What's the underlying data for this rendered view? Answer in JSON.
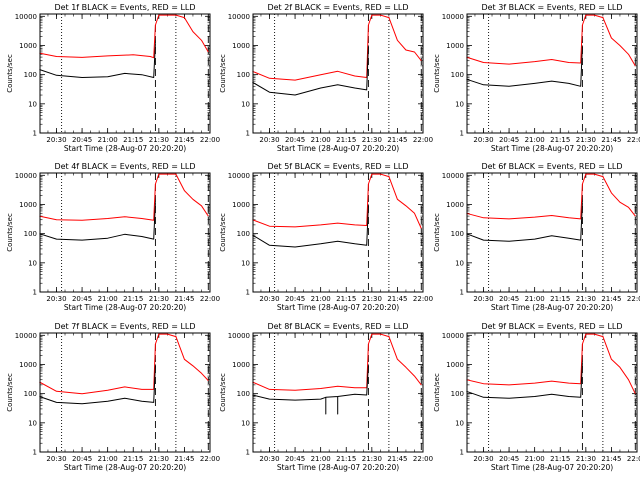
{
  "chart_data": [
    {
      "type": "line",
      "title": "Det 1f BLACK = Events, RED = LLD",
      "ylabel": "Counts/sec",
      "xlabel": "Start Time (28-Aug-07 20:20:20)",
      "x_ticks": [
        "20:30",
        "20:45",
        "21:00",
        "21:15",
        "21:30",
        "21:45",
        "22:00"
      ],
      "y_ticks": [
        "1",
        "10",
        "100",
        "1000",
        "10000"
      ],
      "y_scale": "log",
      "ylim": [
        1,
        12000
      ],
      "xlim": [
        "20:20:20",
        "22:00:00"
      ],
      "series": [
        {
          "color": "#ff0000",
          "x": [
            "20:20",
            "20:30",
            "20:45",
            "21:00",
            "21:15",
            "21:25",
            "21:27",
            "21:28",
            "21:30",
            "21:35",
            "21:40",
            "21:45",
            "21:50",
            "21:55",
            "21:59"
          ],
          "values": [
            550,
            420,
            390,
            440,
            480,
            420,
            380,
            5000,
            11000,
            11000,
            11000,
            9000,
            3000,
            1500,
            600
          ]
        },
        {
          "color": "#000000",
          "x": [
            "20:20",
            "20:30",
            "20:45",
            "21:00",
            "21:10",
            "21:20",
            "21:27",
            "21:28"
          ],
          "values": [
            150,
            95,
            80,
            85,
            110,
            100,
            80,
            1200
          ]
        }
      ],
      "vlines": [
        {
          "style": "dotted",
          "x": "20:33"
        },
        {
          "style": "dashed",
          "x": "21:28"
        },
        {
          "style": "dotted",
          "x": "21:40"
        },
        {
          "style": "dashed",
          "x": "21:59"
        }
      ]
    },
    {
      "type": "line",
      "title": "Det 2f BLACK = Events, RED = LLD",
      "ylabel": "Counts/sec",
      "xlabel": "Start Time (28-Aug-07 20:20:20)",
      "x_ticks": [
        "20:30",
        "20:45",
        "21:00",
        "21:15",
        "21:30",
        "21:45",
        "22:00"
      ],
      "y_ticks": [
        "1",
        "10",
        "100",
        "1000",
        "10000"
      ],
      "y_scale": "log",
      "ylim": [
        1,
        12000
      ],
      "xlim": [
        "20:20:20",
        "22:00:00"
      ],
      "series": [
        {
          "color": "#ff0000",
          "x": [
            "20:20",
            "20:30",
            "20:45",
            "21:00",
            "21:10",
            "21:20",
            "21:27",
            "21:28",
            "21:30",
            "21:35",
            "21:40",
            "21:45",
            "21:50",
            "21:55",
            "21:59"
          ],
          "values": [
            130,
            75,
            65,
            100,
            130,
            90,
            80,
            5000,
            11000,
            11000,
            9000,
            1500,
            700,
            600,
            300
          ]
        },
        {
          "color": "#000000",
          "x": [
            "20:20",
            "20:30",
            "20:45",
            "21:00",
            "21:10",
            "21:20",
            "21:27",
            "21:28"
          ],
          "values": [
            55,
            25,
            20,
            35,
            45,
            35,
            30,
            1000
          ]
        }
      ],
      "vlines": [
        {
          "style": "dotted",
          "x": "20:33"
        },
        {
          "style": "dashed",
          "x": "21:28"
        },
        {
          "style": "dotted",
          "x": "21:40"
        },
        {
          "style": "dashed",
          "x": "21:59"
        }
      ]
    },
    {
      "type": "line",
      "title": "Det 3f BLACK = Events, RED = LLD",
      "ylabel": "Counts/sec",
      "xlabel": "Start Time (28-Aug-07 20:20:20)",
      "x_ticks": [
        "20:30",
        "20:45",
        "21:00",
        "21:15",
        "21:30",
        "21:45",
        "22:00"
      ],
      "y_ticks": [
        "1",
        "10",
        "100",
        "1000",
        "10000"
      ],
      "y_scale": "log",
      "ylim": [
        1,
        12000
      ],
      "xlim": [
        "20:20:20",
        "22:00:00"
      ],
      "series": [
        {
          "color": "#ff0000",
          "x": [
            "20:20",
            "20:30",
            "20:45",
            "21:00",
            "21:10",
            "21:20",
            "21:27",
            "21:28",
            "21:30",
            "21:35",
            "21:40",
            "21:45",
            "21:50",
            "21:55",
            "21:59"
          ],
          "values": [
            400,
            260,
            230,
            280,
            330,
            260,
            250,
            5000,
            11000,
            11000,
            9000,
            1800,
            1000,
            500,
            200
          ]
        },
        {
          "color": "#000000",
          "x": [
            "20:20",
            "20:30",
            "20:45",
            "21:00",
            "21:10",
            "21:20",
            "21:27",
            "21:28"
          ],
          "values": [
            70,
            45,
            40,
            50,
            60,
            50,
            40,
            1000
          ]
        }
      ],
      "vlines": [
        {
          "style": "dotted",
          "x": "20:33"
        },
        {
          "style": "dashed",
          "x": "21:28"
        },
        {
          "style": "dotted",
          "x": "21:40"
        },
        {
          "style": "dashed",
          "x": "21:59"
        }
      ]
    },
    {
      "type": "line",
      "title": "Det 4f BLACK = Events, RED = LLD",
      "ylabel": "Counts/sec",
      "xlabel": "Start Time (28-Aug-07 20:20:20)",
      "x_ticks": [
        "20:30",
        "20:45",
        "21:00",
        "21:15",
        "21:30",
        "21:45",
        "22:00"
      ],
      "y_ticks": [
        "1",
        "10",
        "100",
        "1000",
        "10000"
      ],
      "y_scale": "log",
      "ylim": [
        1,
        12000
      ],
      "xlim": [
        "20:20:20",
        "22:00:00"
      ],
      "series": [
        {
          "color": "#ff0000",
          "x": [
            "20:20",
            "20:30",
            "20:45",
            "21:00",
            "21:10",
            "21:20",
            "21:27",
            "21:28",
            "21:30",
            "21:35",
            "21:40",
            "21:45",
            "21:50",
            "21:55",
            "21:59"
          ],
          "values": [
            400,
            300,
            290,
            330,
            380,
            330,
            290,
            5000,
            11000,
            11000,
            11000,
            3000,
            1500,
            900,
            400
          ]
        },
        {
          "color": "#000000",
          "x": [
            "20:20",
            "20:30",
            "20:45",
            "21:00",
            "21:10",
            "21:20",
            "21:27",
            "21:28"
          ],
          "values": [
            100,
            65,
            60,
            70,
            95,
            80,
            65,
            1200
          ]
        }
      ],
      "vlines": [
        {
          "style": "dotted",
          "x": "20:33"
        },
        {
          "style": "dashed",
          "x": "21:28"
        },
        {
          "style": "dotted",
          "x": "21:40"
        },
        {
          "style": "dashed",
          "x": "21:59"
        }
      ]
    },
    {
      "type": "line",
      "title": "Det 5f BLACK = Events, RED = LLD",
      "ylabel": "Counts/sec",
      "xlabel": "Start Time (28-Aug-07 20:20:20)",
      "x_ticks": [
        "20:30",
        "20:45",
        "21:00",
        "21:15",
        "21:30",
        "21:45",
        "22:00"
      ],
      "y_ticks": [
        "1",
        "10",
        "100",
        "1000",
        "10000"
      ],
      "y_scale": "log",
      "ylim": [
        1,
        12000
      ],
      "xlim": [
        "20:20:20",
        "22:00:00"
      ],
      "series": [
        {
          "color": "#ff0000",
          "x": [
            "20:20",
            "20:30",
            "20:45",
            "21:00",
            "21:10",
            "21:20",
            "21:27",
            "21:28",
            "21:30",
            "21:35",
            "21:40",
            "21:45",
            "21:50",
            "21:55",
            "21:59"
          ],
          "values": [
            300,
            180,
            170,
            200,
            230,
            200,
            190,
            5000,
            11000,
            11000,
            9000,
            1500,
            900,
            500,
            150
          ]
        },
        {
          "color": "#000000",
          "x": [
            "20:20",
            "20:30",
            "20:45",
            "21:00",
            "21:10",
            "21:20",
            "21:27",
            "21:28"
          ],
          "values": [
            90,
            40,
            35,
            45,
            55,
            45,
            40,
            1000
          ]
        }
      ],
      "vlines": [
        {
          "style": "dotted",
          "x": "20:33"
        },
        {
          "style": "dashed",
          "x": "21:28"
        },
        {
          "style": "dotted",
          "x": "21:40"
        },
        {
          "style": "dashed",
          "x": "21:59"
        }
      ]
    },
    {
      "type": "line",
      "title": "Det 6f BLACK = Events, RED = LLD",
      "ylabel": "Counts/sec",
      "xlabel": "Start Time (28-Aug-07 20:20:20)",
      "x_ticks": [
        "20:30",
        "20:45",
        "21:00",
        "21:15",
        "21:30",
        "21:45",
        "22:00"
      ],
      "y_ticks": [
        "1",
        "10",
        "100",
        "1000",
        "10000"
      ],
      "y_scale": "log",
      "ylim": [
        1,
        12000
      ],
      "xlim": [
        "20:20:20",
        "22:00:00"
      ],
      "series": [
        {
          "color": "#ff0000",
          "x": [
            "20:20",
            "20:30",
            "20:45",
            "21:00",
            "21:10",
            "21:20",
            "21:27",
            "21:28",
            "21:30",
            "21:35",
            "21:40",
            "21:45",
            "21:50",
            "21:55",
            "21:59"
          ],
          "values": [
            500,
            350,
            320,
            370,
            420,
            350,
            320,
            5000,
            11000,
            11000,
            9000,
            2500,
            1200,
            800,
            400
          ]
        },
        {
          "color": "#000000",
          "x": [
            "20:20",
            "20:30",
            "20:45",
            "21:00",
            "21:10",
            "21:20",
            "21:27",
            "21:28"
          ],
          "values": [
            100,
            60,
            55,
            65,
            85,
            70,
            60,
            1200
          ]
        }
      ],
      "vlines": [
        {
          "style": "dotted",
          "x": "20:33"
        },
        {
          "style": "dashed",
          "x": "21:28"
        },
        {
          "style": "dotted",
          "x": "21:40"
        },
        {
          "style": "dashed",
          "x": "21:59"
        }
      ]
    },
    {
      "type": "line",
      "title": "Det 7f BLACK = Events, RED = LLD",
      "ylabel": "Counts/sec",
      "xlabel": "Start Time (28-Aug-07 20:20:20)",
      "x_ticks": [
        "20:30",
        "20:45",
        "21:00",
        "21:15",
        "21:30",
        "21:45",
        "22:00"
      ],
      "y_ticks": [
        "1",
        "10",
        "100",
        "1000",
        "10000"
      ],
      "y_scale": "log",
      "ylim": [
        1,
        12000
      ],
      "xlim": [
        "20:20:20",
        "22:00:00"
      ],
      "series": [
        {
          "color": "#ff0000",
          "x": [
            "20:20",
            "20:30",
            "20:45",
            "21:00",
            "21:10",
            "21:20",
            "21:27",
            "21:28",
            "21:30",
            "21:35",
            "21:40",
            "21:45",
            "21:50",
            "21:55",
            "21:59"
          ],
          "values": [
            250,
            120,
            100,
            130,
            170,
            140,
            140,
            5000,
            11000,
            11000,
            9000,
            1500,
            900,
            500,
            280
          ]
        },
        {
          "color": "#000000",
          "x": [
            "20:20",
            "20:30",
            "20:45",
            "21:00",
            "21:10",
            "21:20",
            "21:27",
            "21:28"
          ],
          "values": [
            80,
            50,
            45,
            55,
            70,
            55,
            50,
            1000
          ]
        }
      ],
      "vlines": [
        {
          "style": "dotted",
          "x": "20:33"
        },
        {
          "style": "dashed",
          "x": "21:28"
        },
        {
          "style": "dotted",
          "x": "21:40"
        },
        {
          "style": "dashed",
          "x": "21:59"
        }
      ]
    },
    {
      "type": "line",
      "title": "Det 8f BLACK = Events, RED = LLD",
      "ylabel": "Counts/sec",
      "xlabel": "Start Time (28-Aug-07 20:20:20)",
      "x_ticks": [
        "20:30",
        "20:45",
        "21:00",
        "21:15",
        "21:30",
        "21:45",
        "22:00"
      ],
      "y_ticks": [
        "1",
        "10",
        "100",
        "1000",
        "10000"
      ],
      "y_scale": "log",
      "ylim": [
        1,
        12000
      ],
      "xlim": [
        "20:20:20",
        "22:00:00"
      ],
      "series": [
        {
          "color": "#ff0000",
          "x": [
            "20:20",
            "20:30",
            "20:45",
            "21:00",
            "21:10",
            "21:20",
            "21:27",
            "21:28",
            "21:30",
            "21:35",
            "21:40",
            "21:45",
            "21:50",
            "21:55",
            "21:59"
          ],
          "values": [
            250,
            140,
            130,
            150,
            180,
            160,
            160,
            5000,
            11000,
            11000,
            9000,
            1500,
            800,
            400,
            200
          ]
        },
        {
          "color": "#000000",
          "x": [
            "20:20",
            "20:30",
            "20:45",
            "21:00",
            "21:03",
            "21:03",
            "21:03",
            "21:10",
            "21:10",
            "21:10",
            "21:20",
            "21:27",
            "21:28"
          ],
          "values": [
            90,
            65,
            60,
            65,
            75,
            20,
            75,
            80,
            20,
            80,
            95,
            90,
            1000
          ]
        }
      ],
      "vlines": [
        {
          "style": "dotted",
          "x": "20:33"
        },
        {
          "style": "dashed",
          "x": "21:28"
        },
        {
          "style": "dotted",
          "x": "21:40"
        },
        {
          "style": "dashed",
          "x": "21:59"
        }
      ]
    },
    {
      "type": "line",
      "title": "Det 9f BLACK = Events, RED = LLD",
      "ylabel": "Counts/sec",
      "xlabel": "Start Time (28-Aug-07 20:20:20)",
      "x_ticks": [
        "20:30",
        "20:45",
        "21:00",
        "21:15",
        "21:30",
        "21:45",
        "22:00"
      ],
      "y_ticks": [
        "1",
        "10",
        "100",
        "1000",
        "10000"
      ],
      "y_scale": "log",
      "ylim": [
        1,
        12000
      ],
      "xlim": [
        "20:20:20",
        "22:00:00"
      ],
      "series": [
        {
          "color": "#ff0000",
          "x": [
            "20:20",
            "20:30",
            "20:45",
            "21:00",
            "21:10",
            "21:20",
            "21:27",
            "21:28",
            "21:30",
            "21:35",
            "21:40",
            "21:45",
            "21:50",
            "21:55",
            "21:59"
          ],
          "values": [
            300,
            220,
            200,
            230,
            270,
            230,
            220,
            5000,
            11000,
            11000,
            9000,
            1500,
            800,
            300,
            100
          ]
        },
        {
          "color": "#000000",
          "x": [
            "20:20",
            "20:30",
            "20:45",
            "21:00",
            "21:10",
            "21:20",
            "21:27",
            "21:28"
          ],
          "values": [
            120,
            75,
            70,
            80,
            95,
            80,
            75,
            1200
          ]
        }
      ],
      "vlines": [
        {
          "style": "dotted",
          "x": "20:33"
        },
        {
          "style": "dashed",
          "x": "21:28"
        },
        {
          "style": "dotted",
          "x": "21:40"
        },
        {
          "style": "dashed",
          "x": "21:59"
        }
      ]
    }
  ]
}
